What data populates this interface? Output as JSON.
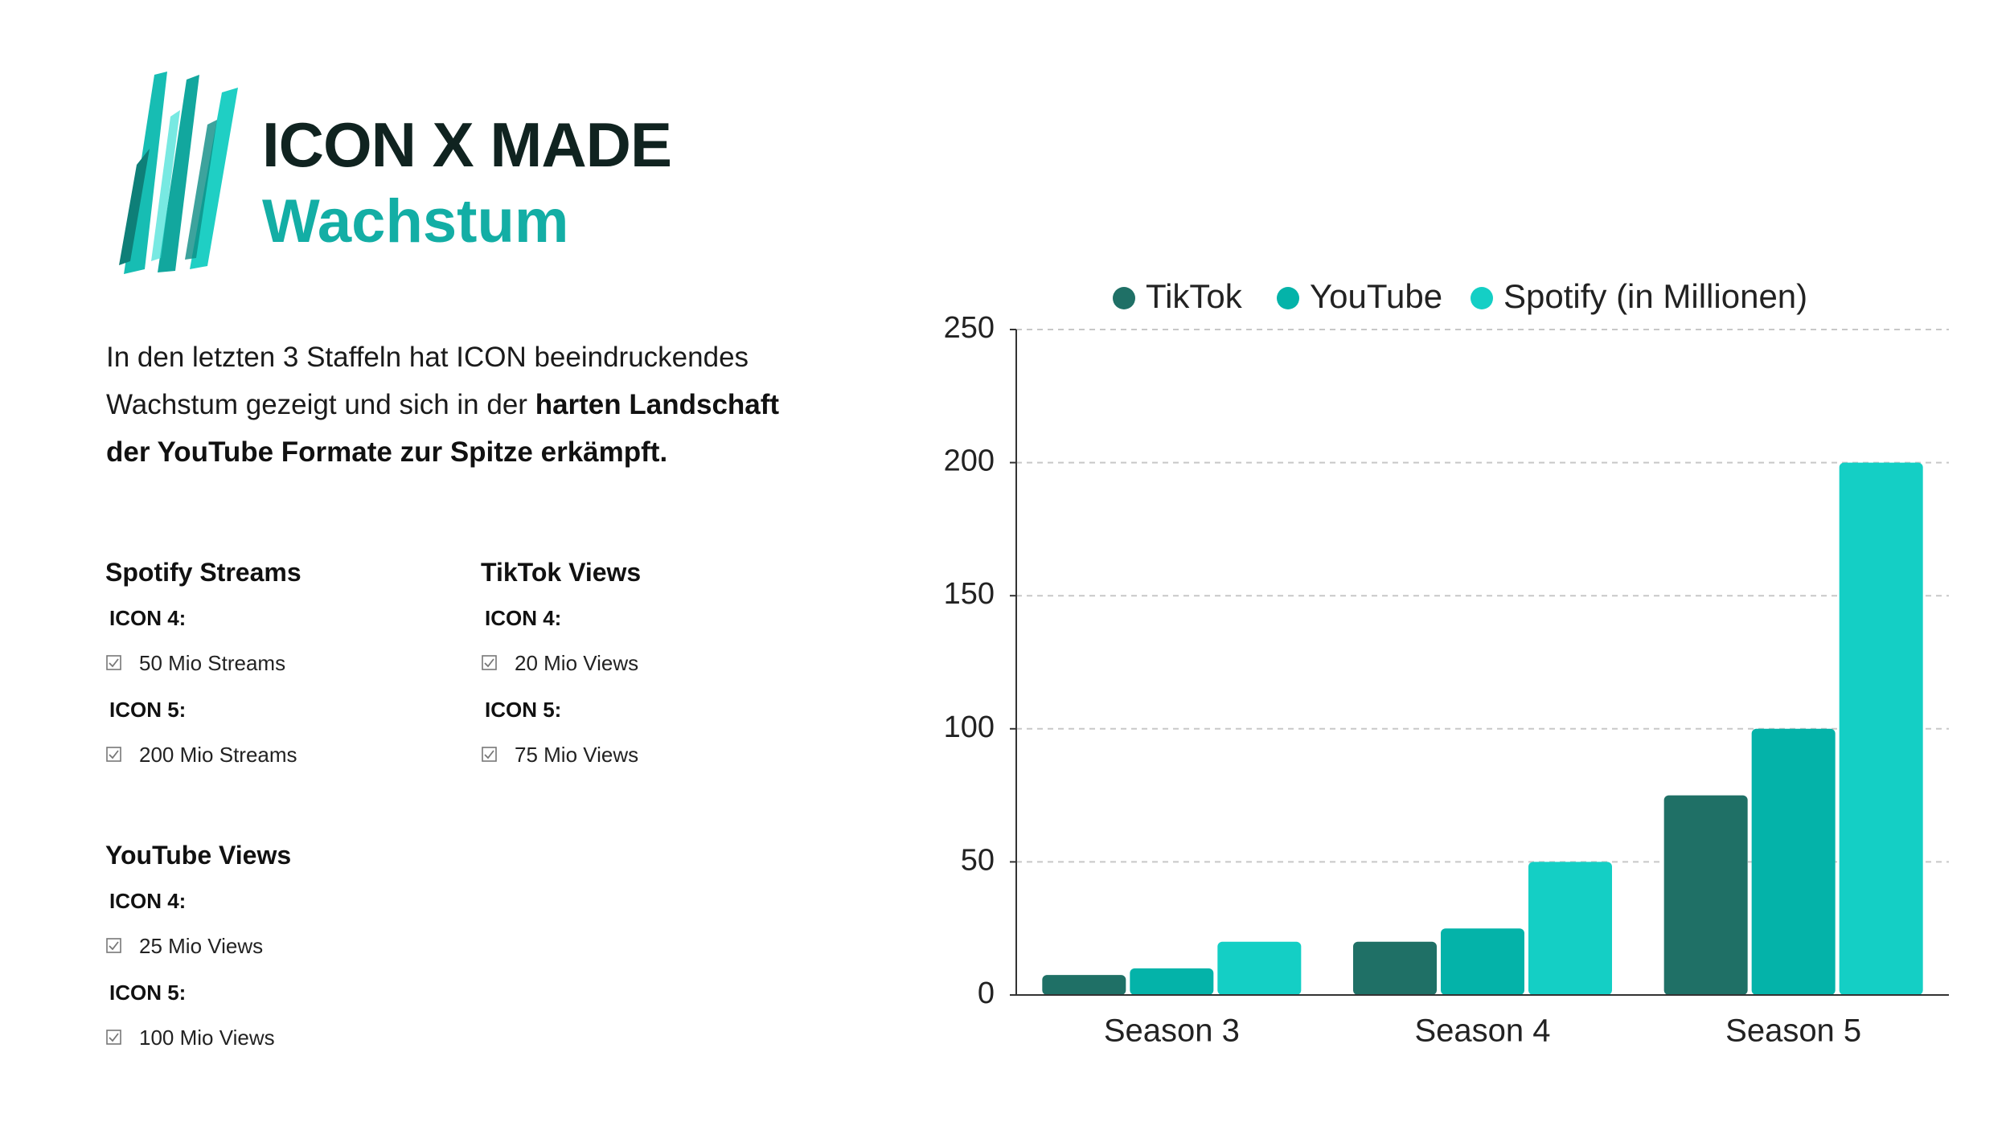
{
  "header": {
    "title": "ICON X MADE",
    "subtitle": "Wachstum"
  },
  "intro": {
    "text": "In den letzten 3 Staffeln hat ICON beeindruckendes Wachstum gezeigt und sich in der ",
    "bold": "harten Landschaft der YouTube Formate zur Spitze erkämpft."
  },
  "stats": [
    {
      "title": "Spotify Streams",
      "groups": [
        {
          "label": "ICON 4:",
          "item": "50 Mio Streams"
        },
        {
          "label": "ICON 5:",
          "item": "200 Mio Streams"
        }
      ]
    },
    {
      "title": "TikTok Views",
      "groups": [
        {
          "label": "ICON 4:",
          "item": "20 Mio Views"
        },
        {
          "label": "ICON 5:",
          "item": "75 Mio Views"
        }
      ]
    },
    {
      "title": "YouTube Views",
      "groups": [
        {
          "label": "ICON 4:",
          "item": "25 Mio Views"
        },
        {
          "label": "ICON 5:",
          "item": "100 Mio Views"
        }
      ]
    }
  ],
  "chart_data": {
    "type": "bar",
    "categories": [
      "Season 3",
      "Season 4",
      "Season 5"
    ],
    "series": [
      {
        "name": "TikTok",
        "color": "#1f7066",
        "values": [
          7.5,
          20,
          75
        ]
      },
      {
        "name": "YouTube",
        "color": "#04b3a9",
        "values": [
          10,
          25,
          100
        ]
      },
      {
        "name": "Spotify (in Millionen)",
        "color": "#14cfc5",
        "values": [
          20,
          50,
          200
        ]
      }
    ],
    "ylim": [
      0,
      250
    ],
    "yticks": [
      0,
      50,
      100,
      150,
      200,
      250
    ],
    "grid": true,
    "legend": "top"
  }
}
